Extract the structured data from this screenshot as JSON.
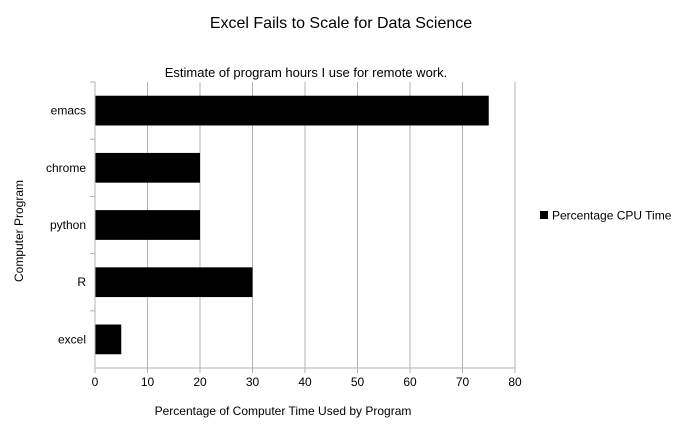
{
  "chart_data": {
    "type": "bar",
    "orientation": "horizontal",
    "title": "Excel Fails to Scale for Data Science",
    "subtitle": "Estimate of program hours I use for remote work.",
    "xlabel": "Percentage of Computer Time Used by Program",
    "ylabel": "Computer Program",
    "categories": [
      "emacs",
      "chrome",
      "python",
      "R",
      "excel"
    ],
    "series": [
      {
        "name": "Percentage CPU Time",
        "values": [
          75,
          20,
          20,
          30,
          5
        ],
        "color": "#000000"
      }
    ],
    "xlim": [
      0,
      80
    ],
    "xticks": [
      "0",
      "10",
      "20",
      "30",
      "40",
      "50",
      "60",
      "70",
      "80"
    ],
    "grid": "vertical",
    "legend_position": "right"
  }
}
